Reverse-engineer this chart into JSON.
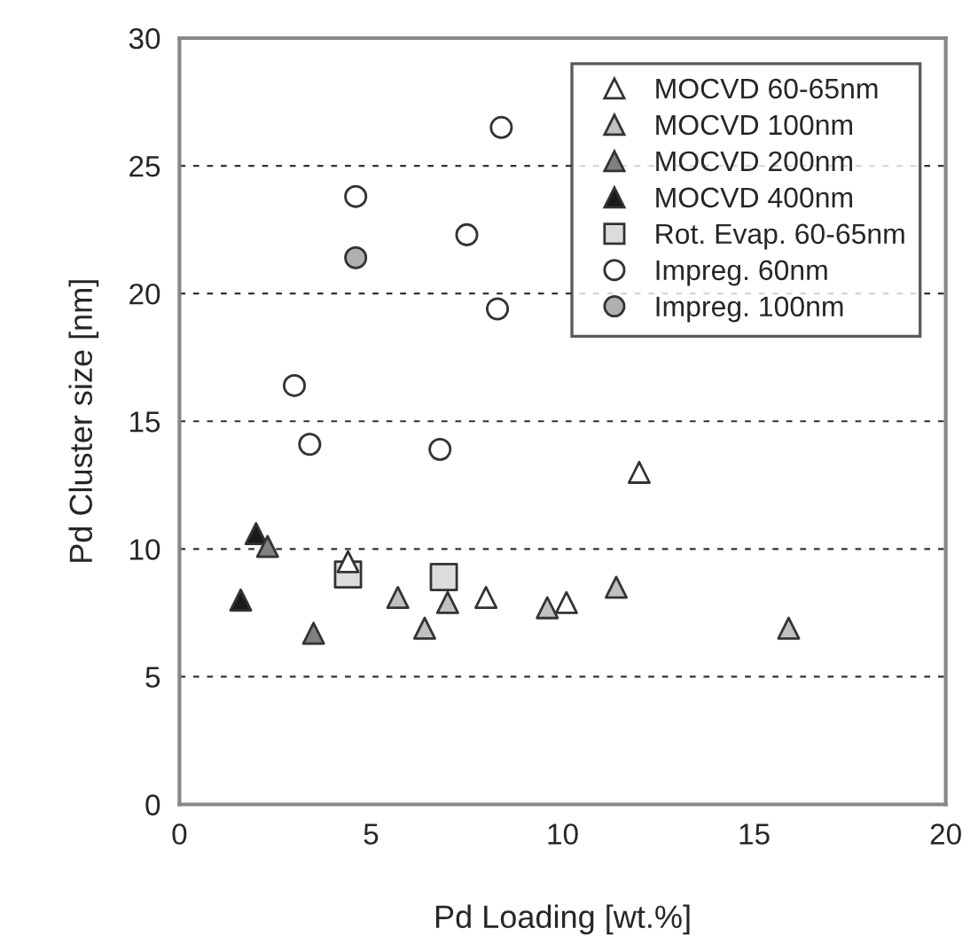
{
  "chart_data": {
    "type": "scatter",
    "xlabel": "Pd Loading [wt.%]",
    "ylabel": "Pd Cluster size [nm]",
    "xlim": [
      0,
      20
    ],
    "ylim": [
      0,
      30
    ],
    "xticks": [
      0,
      5,
      10,
      15,
      20
    ],
    "yticks": [
      0,
      5,
      10,
      15,
      20,
      25,
      30
    ],
    "grid": "y",
    "legend": "top right",
    "series": [
      {
        "name": "MOCVD 60-65nm",
        "color": "#ffffff",
        "marker": "triangle",
        "x": [
          4.4,
          8.0,
          10.1,
          12.0
        ],
        "values": [
          9.5,
          8.1,
          7.9,
          13.0
        ]
      },
      {
        "name": "MOCVD 100nm",
        "color": "#c0c0c0",
        "marker": "triangle",
        "x": [
          5.7,
          7.0,
          6.4,
          9.6,
          11.4,
          15.9
        ],
        "values": [
          8.1,
          7.9,
          6.9,
          7.7,
          8.5,
          6.9
        ]
      },
      {
        "name": "MOCVD 200nm",
        "color": "#808080",
        "marker": "triangle",
        "x": [
          2.3,
          3.5
        ],
        "values": [
          10.1,
          6.7
        ]
      },
      {
        "name": "MOCVD 400nm",
        "color": "#1a1a1a",
        "marker": "triangle",
        "x": [
          2.0,
          1.6
        ],
        "values": [
          10.6,
          8.0
        ]
      },
      {
        "name": "Rot. Evap. 60-65nm",
        "color": "#dcdcdc",
        "marker": "square",
        "x": [
          4.4,
          6.9
        ],
        "values": [
          9.0,
          8.9
        ]
      },
      {
        "name": "Impreg. 60nm",
        "color": "#ffffff",
        "marker": "circle",
        "x": [
          8.4,
          4.6,
          7.5,
          8.3,
          3.0,
          3.4,
          6.8
        ],
        "values": [
          26.5,
          23.8,
          22.3,
          19.4,
          16.4,
          14.1,
          13.9
        ]
      },
      {
        "name": "Impreg. 100nm",
        "color": "#b0b0b0",
        "marker": "circle",
        "x": [
          4.6
        ],
        "values": [
          21.4
        ]
      }
    ]
  }
}
